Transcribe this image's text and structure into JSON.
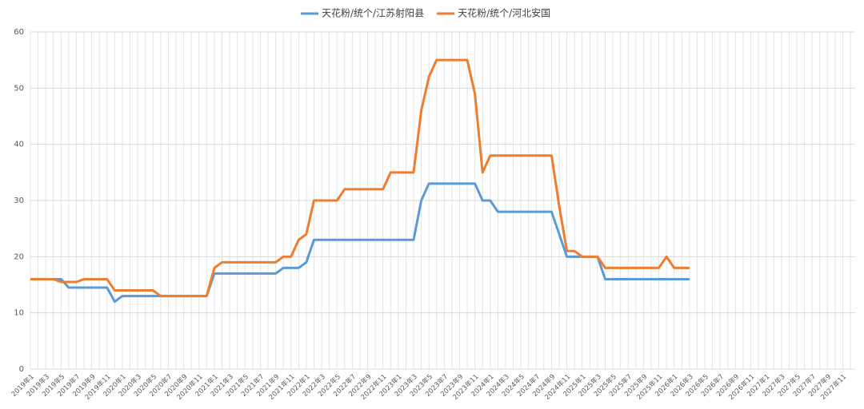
{
  "chart_data": {
    "type": "line",
    "categories": [
      "2019年1",
      null,
      "2019年3",
      null,
      "2019年5",
      null,
      "2019年7",
      null,
      "2019年9",
      null,
      "2019年11",
      null,
      "2020年1",
      null,
      "2020年3",
      null,
      "2020年5",
      null,
      "2020年7",
      null,
      "2020年9",
      null,
      "2020年11",
      null,
      "2021年1",
      null,
      "2021年3",
      null,
      "2021年5",
      null,
      "2021年7",
      null,
      "2021年9",
      null,
      "2021年11",
      null,
      "2022年1",
      null,
      "2022年3",
      null,
      "2022年5",
      null,
      "2022年7",
      null,
      "2022年9",
      null,
      "2022年11",
      null,
      "2023年1",
      null,
      "2023年3",
      null,
      "2023年5",
      null,
      "2023年7",
      null,
      "2023年9",
      null,
      "2023年11",
      null,
      "2024年1",
      null,
      "2024年3",
      null,
      "2024年5",
      null,
      "2024年7",
      null,
      "2024年9",
      null,
      "2024年11",
      null,
      "2025年1",
      null,
      "2025年3",
      null,
      "2025年5",
      null,
      "2025年7",
      null,
      "2025年9",
      null,
      "2025年11",
      null,
      "2026年1",
      null,
      "2026年3",
      null,
      "2026年5",
      null,
      "2026年7",
      null,
      "2026年9",
      null,
      "2026年11",
      null,
      "2027年1",
      null,
      "2027年3",
      null,
      "2027年5",
      null,
      "2027年7",
      null,
      "2027年9",
      null,
      "2027年11",
      null
    ],
    "series": [
      {
        "name": "天花粉/统个/江苏射阳县",
        "color": "#5b9bd5",
        "values": [
          16,
          16,
          16,
          16,
          16,
          14.5,
          14.5,
          14.5,
          14.5,
          14.5,
          14.5,
          12,
          13,
          13,
          13,
          13,
          13,
          13,
          13,
          13,
          13,
          13,
          13,
          13,
          17,
          17,
          17,
          17,
          17,
          17,
          17,
          17,
          17,
          18,
          18,
          18,
          19,
          23,
          23,
          23,
          23,
          23,
          23,
          23,
          23,
          23,
          23,
          23,
          23,
          23,
          23,
          30,
          33,
          33,
          33,
          33,
          33,
          33,
          33,
          30,
          30,
          28,
          28,
          28,
          28,
          28,
          28,
          28,
          28,
          24,
          20,
          20,
          20,
          20,
          20,
          16,
          16,
          16,
          16,
          16,
          16,
          16,
          16,
          16,
          16,
          16,
          16,
          null,
          null,
          null,
          null,
          null,
          null,
          null,
          null,
          null,
          null,
          null,
          null,
          null,
          null,
          null,
          null,
          null,
          null,
          null,
          null,
          null
        ]
      },
      {
        "name": "天花粉/统个/河北安国",
        "color": "#ed7d31",
        "values": [
          16,
          16,
          16,
          16,
          15.5,
          15.5,
          15.5,
          16,
          16,
          16,
          16,
          14,
          14,
          14,
          14,
          14,
          14,
          13,
          13,
          13,
          13,
          13,
          13,
          13,
          18,
          19,
          19,
          19,
          19,
          19,
          19,
          19,
          19,
          20,
          20,
          23,
          24,
          30,
          30,
          30,
          30,
          32,
          32,
          32,
          32,
          32,
          32,
          35,
          35,
          35,
          35,
          46,
          52,
          55,
          55,
          55,
          55,
          55,
          49,
          35,
          38,
          38,
          38,
          38,
          38,
          38,
          38,
          38,
          38,
          29,
          21,
          21,
          20,
          20,
          20,
          18,
          18,
          18,
          18,
          18,
          18,
          18,
          18,
          20,
          18,
          18,
          18,
          null,
          null,
          null,
          null,
          null,
          null,
          null,
          null,
          null,
          null,
          null,
          null,
          null,
          null,
          null,
          null,
          null,
          null,
          null,
          null,
          null
        ]
      }
    ],
    "ylim": [
      0,
      60
    ],
    "yticks": [
      0,
      10,
      20,
      30,
      40,
      50,
      60
    ],
    "grid": true,
    "legend": "top"
  }
}
